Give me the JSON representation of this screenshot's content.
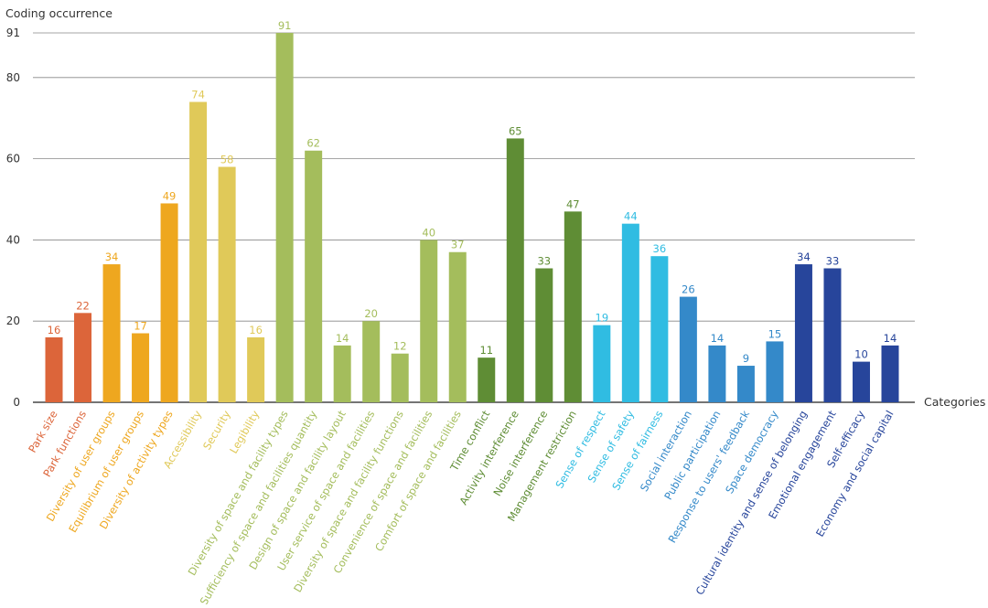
{
  "chart_data": {
    "type": "bar",
    "title": "",
    "ylabel": "Coding occurrence",
    "xlabel": "Categories",
    "ylim": [
      0,
      91
    ],
    "yticks": [
      0,
      20,
      40,
      60,
      80,
      91
    ],
    "grid": true,
    "colors": {
      "red": "#dc653a",
      "orange": "#eea71f",
      "yellow": "#e0c959",
      "lightgreen": "#a4bd5c",
      "darkgreen": "#5f8d35",
      "cyan": "#30bce2",
      "blue": "#3489c9",
      "navy": "#27459b"
    },
    "bars": [
      {
        "label": "Park size",
        "value": 16,
        "color": "red"
      },
      {
        "label": "Park functions",
        "value": 22,
        "color": "red"
      },
      {
        "label": "Diversity of user groups",
        "value": 34,
        "color": "orange"
      },
      {
        "label": "Equilibrium of user groups",
        "value": 17,
        "color": "orange"
      },
      {
        "label": "Diversity of activity types",
        "value": 49,
        "color": "orange"
      },
      {
        "label": "Accessibility",
        "value": 74,
        "color": "yellow"
      },
      {
        "label": "Security",
        "value": 58,
        "color": "yellow"
      },
      {
        "label": "Legibility",
        "value": 16,
        "color": "yellow"
      },
      {
        "label": "Diversity of space and facility types",
        "value": 91,
        "color": "lightgreen"
      },
      {
        "label": "Sufficiency of space and facilities quantity",
        "value": 62,
        "color": "lightgreen"
      },
      {
        "label": "Design of space and facility layout",
        "value": 14,
        "color": "lightgreen"
      },
      {
        "label": "User service of space and facilities",
        "value": 20,
        "color": "lightgreen"
      },
      {
        "label": "Diversity of space and facility functions",
        "value": 12,
        "color": "lightgreen"
      },
      {
        "label": "Convenience of space and facilities",
        "value": 40,
        "color": "lightgreen"
      },
      {
        "label": "Comfort of space and facilities",
        "value": 37,
        "color": "lightgreen"
      },
      {
        "label": "Time conflict",
        "value": 11,
        "color": "darkgreen"
      },
      {
        "label": "Activity interference",
        "value": 65,
        "color": "darkgreen"
      },
      {
        "label": "Noise interference",
        "value": 33,
        "color": "darkgreen"
      },
      {
        "label": "Management restriction",
        "value": 47,
        "color": "darkgreen"
      },
      {
        "label": "Sense of respect",
        "value": 19,
        "color": "cyan"
      },
      {
        "label": "Sense of safety",
        "value": 44,
        "color": "cyan"
      },
      {
        "label": "Sense of fairness",
        "value": 36,
        "color": "cyan"
      },
      {
        "label": "Social interaction",
        "value": 26,
        "color": "blue"
      },
      {
        "label": "Public participation",
        "value": 14,
        "color": "blue"
      },
      {
        "label": "Response to users' feedback",
        "value": 9,
        "color": "blue"
      },
      {
        "label": "Space democracy",
        "value": 15,
        "color": "blue"
      },
      {
        "label": "Cultural identity and sense of belonging",
        "value": 34,
        "color": "navy"
      },
      {
        "label": "Emotional engagement",
        "value": 33,
        "color": "navy"
      },
      {
        "label": "Self-efficacy",
        "value": 10,
        "color": "navy"
      },
      {
        "label": "Economy and social capital",
        "value": 14,
        "color": "navy"
      }
    ]
  }
}
